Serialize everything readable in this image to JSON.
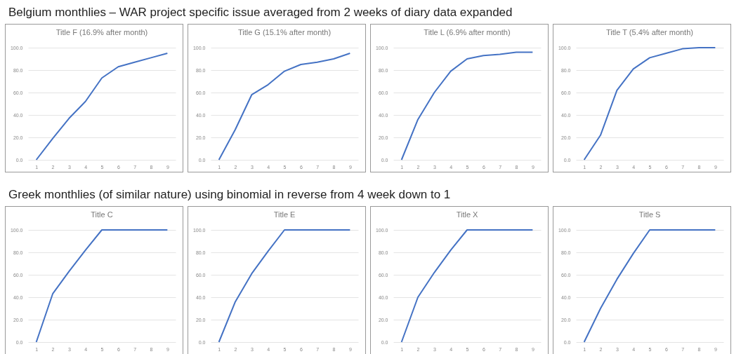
{
  "chart_data": [
    {
      "type": "other",
      "title": "Belgium monthlies – WAR project specific issue averaged from 2 weeks of diary data expanded"
    },
    {
      "type": "line",
      "title": "Title F (16.9% after month)",
      "categories": [
        "1",
        "2",
        "3",
        "4",
        "5",
        "6",
        "7",
        "8",
        "9"
      ],
      "series": [
        {
          "color": "#4472c4",
          "values": [
            0,
            19,
            37,
            52,
            73,
            83,
            87,
            91,
            95
          ]
        }
      ],
      "ylim": [
        0,
        100
      ],
      "yticks": [
        {
          "value": 0,
          "label": "0.0"
        },
        {
          "value": 20,
          "label": "20.0"
        },
        {
          "value": 40,
          "label": "40.0"
        },
        {
          "value": 60,
          "label": "60.0"
        },
        {
          "value": 80,
          "label": "80.0"
        },
        {
          "value": 100,
          "label": "100.0"
        }
      ],
      "grid": "y"
    },
    {
      "type": "line",
      "title": "Title G  (15.1% after month)",
      "categories": [
        "1",
        "2",
        "3",
        "4",
        "5",
        "6",
        "7",
        "8",
        "9"
      ],
      "series": [
        {
          "color": "#4472c4",
          "values": [
            0,
            27,
            58,
            67,
            79,
            85,
            87,
            90,
            95
          ]
        }
      ],
      "ylim": [
        0,
        100
      ],
      "yticks": [
        {
          "value": 0,
          "label": "0.0"
        },
        {
          "value": 20,
          "label": "20.0"
        },
        {
          "value": 40,
          "label": "40.0"
        },
        {
          "value": 60,
          "label": "60.0"
        },
        {
          "value": 80,
          "label": "80.0"
        },
        {
          "value": 100,
          "label": "100.0"
        }
      ],
      "grid": "y"
    },
    {
      "type": "line",
      "title": "Title L (6.9% after month)",
      "categories": [
        "1",
        "2",
        "3",
        "4",
        "5",
        "6",
        "7",
        "8",
        "9"
      ],
      "series": [
        {
          "color": "#4472c4",
          "values": [
            0,
            36,
            60,
            79,
            90,
            93,
            94,
            96,
            96
          ]
        }
      ],
      "ylim": [
        0,
        100
      ],
      "yticks": [
        {
          "value": 0,
          "label": "0.0"
        },
        {
          "value": 20,
          "label": "20.0"
        },
        {
          "value": 40,
          "label": "40.0"
        },
        {
          "value": 60,
          "label": "60.0"
        },
        {
          "value": 80,
          "label": "80.0"
        },
        {
          "value": 100,
          "label": "100.0"
        }
      ],
      "grid": "y"
    },
    {
      "type": "line",
      "title": "Title T (5.4% after month)",
      "categories": [
        "1",
        "2",
        "3",
        "4",
        "5",
        "6",
        "7",
        "8",
        "9"
      ],
      "series": [
        {
          "color": "#4472c4",
          "values": [
            0,
            22,
            62,
            81,
            91,
            95,
            99,
            100,
            100
          ]
        }
      ],
      "ylim": [
        0,
        100
      ],
      "yticks": [
        {
          "value": 0,
          "label": "0.0"
        },
        {
          "value": 20,
          "label": "20.0"
        },
        {
          "value": 40,
          "label": "40.0"
        },
        {
          "value": 60,
          "label": "60.0"
        },
        {
          "value": 80,
          "label": "80.0"
        },
        {
          "value": 100,
          "label": "100.0"
        }
      ],
      "grid": "y"
    },
    {
      "type": "other",
      "title": "Greek monthlies (of similar nature) using binomial in reverse from 4 week down to 1"
    },
    {
      "type": "line",
      "title": "Title C",
      "categories": [
        "1",
        "2",
        "3",
        "4",
        "5",
        "6",
        "7",
        "8",
        "9"
      ],
      "series": [
        {
          "color": "#4472c4",
          "values": [
            0,
            43,
            63,
            82,
            100,
            100,
            100,
            100,
            100
          ]
        }
      ],
      "ylim": [
        0,
        100
      ],
      "yticks": [
        {
          "value": 0,
          "label": "0.0"
        },
        {
          "value": 20,
          "label": "20.0"
        },
        {
          "value": 40,
          "label": "40.0"
        },
        {
          "value": 60,
          "label": "60.0"
        },
        {
          "value": 80,
          "label": "80.0"
        },
        {
          "value": 100,
          "label": "100.0"
        }
      ],
      "grid": "y"
    },
    {
      "type": "line",
      "title": "Title E",
      "categories": [
        "1",
        "2",
        "3",
        "4",
        "5",
        "6",
        "7",
        "8",
        "9"
      ],
      "series": [
        {
          "color": "#4472c4",
          "values": [
            0,
            36,
            61,
            81,
            100,
            100,
            100,
            100,
            100
          ]
        }
      ],
      "ylim": [
        0,
        100
      ],
      "yticks": [
        {
          "value": 0,
          "label": "0.0"
        },
        {
          "value": 20,
          "label": "20.0"
        },
        {
          "value": 40,
          "label": "40.0"
        },
        {
          "value": 60,
          "label": "60.0"
        },
        {
          "value": 80,
          "label": "80.0"
        },
        {
          "value": 100,
          "label": "100.0"
        }
      ],
      "grid": "y"
    },
    {
      "type": "line",
      "title": "Title X",
      "categories": [
        "1",
        "2",
        "3",
        "4",
        "5",
        "6",
        "7",
        "8",
        "9"
      ],
      "series": [
        {
          "color": "#4472c4",
          "values": [
            0,
            40,
            62,
            82,
            100,
            100,
            100,
            100,
            100
          ]
        }
      ],
      "ylim": [
        0,
        100
      ],
      "yticks": [
        {
          "value": 0,
          "label": "0.0"
        },
        {
          "value": 20,
          "label": "20.0"
        },
        {
          "value": 40,
          "label": "40.0"
        },
        {
          "value": 60,
          "label": "60.0"
        },
        {
          "value": 80,
          "label": "80.0"
        },
        {
          "value": 100,
          "label": "100.0"
        }
      ],
      "grid": "y"
    },
    {
      "type": "line",
      "title": "Title S",
      "categories": [
        "1",
        "2",
        "3",
        "4",
        "5",
        "6",
        "7",
        "8",
        "9"
      ],
      "series": [
        {
          "color": "#4472c4",
          "values": [
            0,
            30,
            56,
            79,
            100,
            100,
            100,
            100,
            100
          ]
        }
      ],
      "ylim": [
        0,
        100
      ],
      "yticks": [
        {
          "value": 0,
          "label": "0.0"
        },
        {
          "value": 20,
          "label": "20.0"
        },
        {
          "value": 40,
          "label": "40.0"
        },
        {
          "value": 60,
          "label": "60.0"
        },
        {
          "value": 80,
          "label": "80.0"
        },
        {
          "value": 100,
          "label": "100.0"
        }
      ],
      "grid": "y"
    }
  ]
}
